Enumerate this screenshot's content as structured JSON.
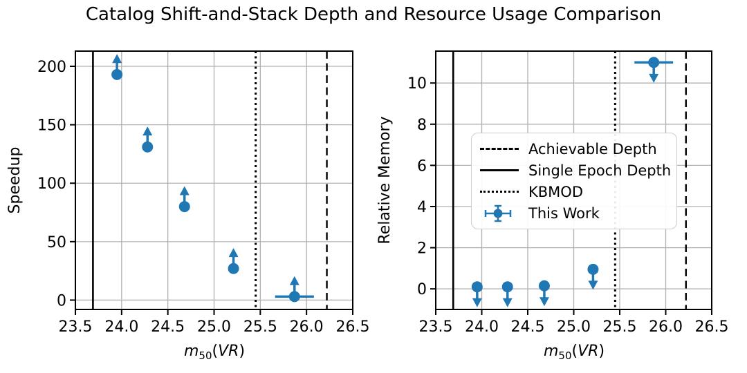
{
  "figure": {
    "title": "Catalog Shift-and-Stack Depth and Resource Usage Comparison",
    "background": "#ffffff"
  },
  "colors": {
    "accent": "#1f77b4",
    "grid": "#b0b0b0",
    "axis": "#000000",
    "legend_border": "#cccccc"
  },
  "xlabel_parts": {
    "var": "m",
    "sub": "50",
    "open": "(",
    "vars": "VR",
    "close": ")"
  },
  "legend": {
    "items": [
      {
        "label": "Achievable Depth",
        "style": "dashed"
      },
      {
        "label": "Single Epoch Depth",
        "style": "solid"
      },
      {
        "label": "KBMOD",
        "style": "dotted"
      },
      {
        "label": "This Work",
        "style": "marker"
      }
    ]
  },
  "chart_data": [
    {
      "type": "scatter",
      "title": "Catalog Shift-and-Stack Depth and Resource Usage Comparison",
      "ylabel": "Speedup",
      "xlabel": "m50(VR)",
      "grid": true,
      "xlim": [
        23.5,
        26.5
      ],
      "ylim": [
        -8,
        213
      ],
      "xticks": [
        23.5,
        24.0,
        24.5,
        25.0,
        25.5,
        26.0,
        26.5
      ],
      "xtick_labels": [
        "23.5",
        "24.0",
        "24.5",
        "25.0",
        "25.5",
        "26.0",
        "26.5"
      ],
      "yticks": [
        0,
        50,
        100,
        150,
        200
      ],
      "ytick_labels": [
        "0",
        "50",
        "100",
        "150",
        "200"
      ],
      "vlines": [
        {
          "x": 23.69,
          "style": "solid",
          "label": "Single Epoch Depth"
        },
        {
          "x": 25.45,
          "style": "dotted",
          "label": "KBMOD"
        },
        {
          "x": 26.22,
          "style": "dashed",
          "label": "Achievable Depth"
        }
      ],
      "series": [
        {
          "name": "This Work",
          "limit_direction": "lower",
          "points": [
            {
              "x": 23.95,
              "y": 193,
              "yerr": 11
            },
            {
              "x": 24.28,
              "y": 131,
              "yerr": 11
            },
            {
              "x": 24.68,
              "y": 80,
              "yerr": 11
            },
            {
              "x": 25.21,
              "y": 27,
              "yerr": 11
            },
            {
              "x": 25.87,
              "y": 3,
              "yerr": 11,
              "xerr": 0.21
            }
          ]
        }
      ]
    },
    {
      "type": "scatter",
      "title": "Catalog Shift-and-Stack Depth and Resource Usage Comparison",
      "ylabel": "Relative Memory",
      "xlabel": "m50(VR)",
      "grid": true,
      "xlim": [
        23.5,
        26.5
      ],
      "ylim": [
        -1,
        11.55
      ],
      "xticks": [
        23.5,
        24.0,
        24.5,
        25.0,
        25.5,
        26.0,
        26.5
      ],
      "xtick_labels": [
        "23.5",
        "24.0",
        "24.5",
        "25.0",
        "25.5",
        "26.0",
        "26.5"
      ],
      "yticks": [
        0,
        2,
        4,
        6,
        8,
        10
      ],
      "ytick_labels": [
        "0",
        "2",
        "4",
        "6",
        "8",
        "10"
      ],
      "vlines": [
        {
          "x": 23.69,
          "style": "solid",
          "label": "Single Epoch Depth"
        },
        {
          "x": 25.45,
          "style": "dotted",
          "label": "KBMOD"
        },
        {
          "x": 26.22,
          "style": "dashed",
          "label": "Achievable Depth"
        }
      ],
      "series": [
        {
          "name": "This Work",
          "limit_direction": "upper",
          "points": [
            {
              "x": 23.95,
              "y": 0.1,
              "yerr": 0.62
            },
            {
              "x": 24.28,
              "y": 0.1,
              "yerr": 0.62
            },
            {
              "x": 24.68,
              "y": 0.15,
              "yerr": 0.62
            },
            {
              "x": 25.21,
              "y": 0.95,
              "yerr": 0.62
            },
            {
              "x": 25.87,
              "y": 11.0,
              "yerr": 0.62,
              "xerr": 0.21
            }
          ]
        }
      ]
    }
  ]
}
